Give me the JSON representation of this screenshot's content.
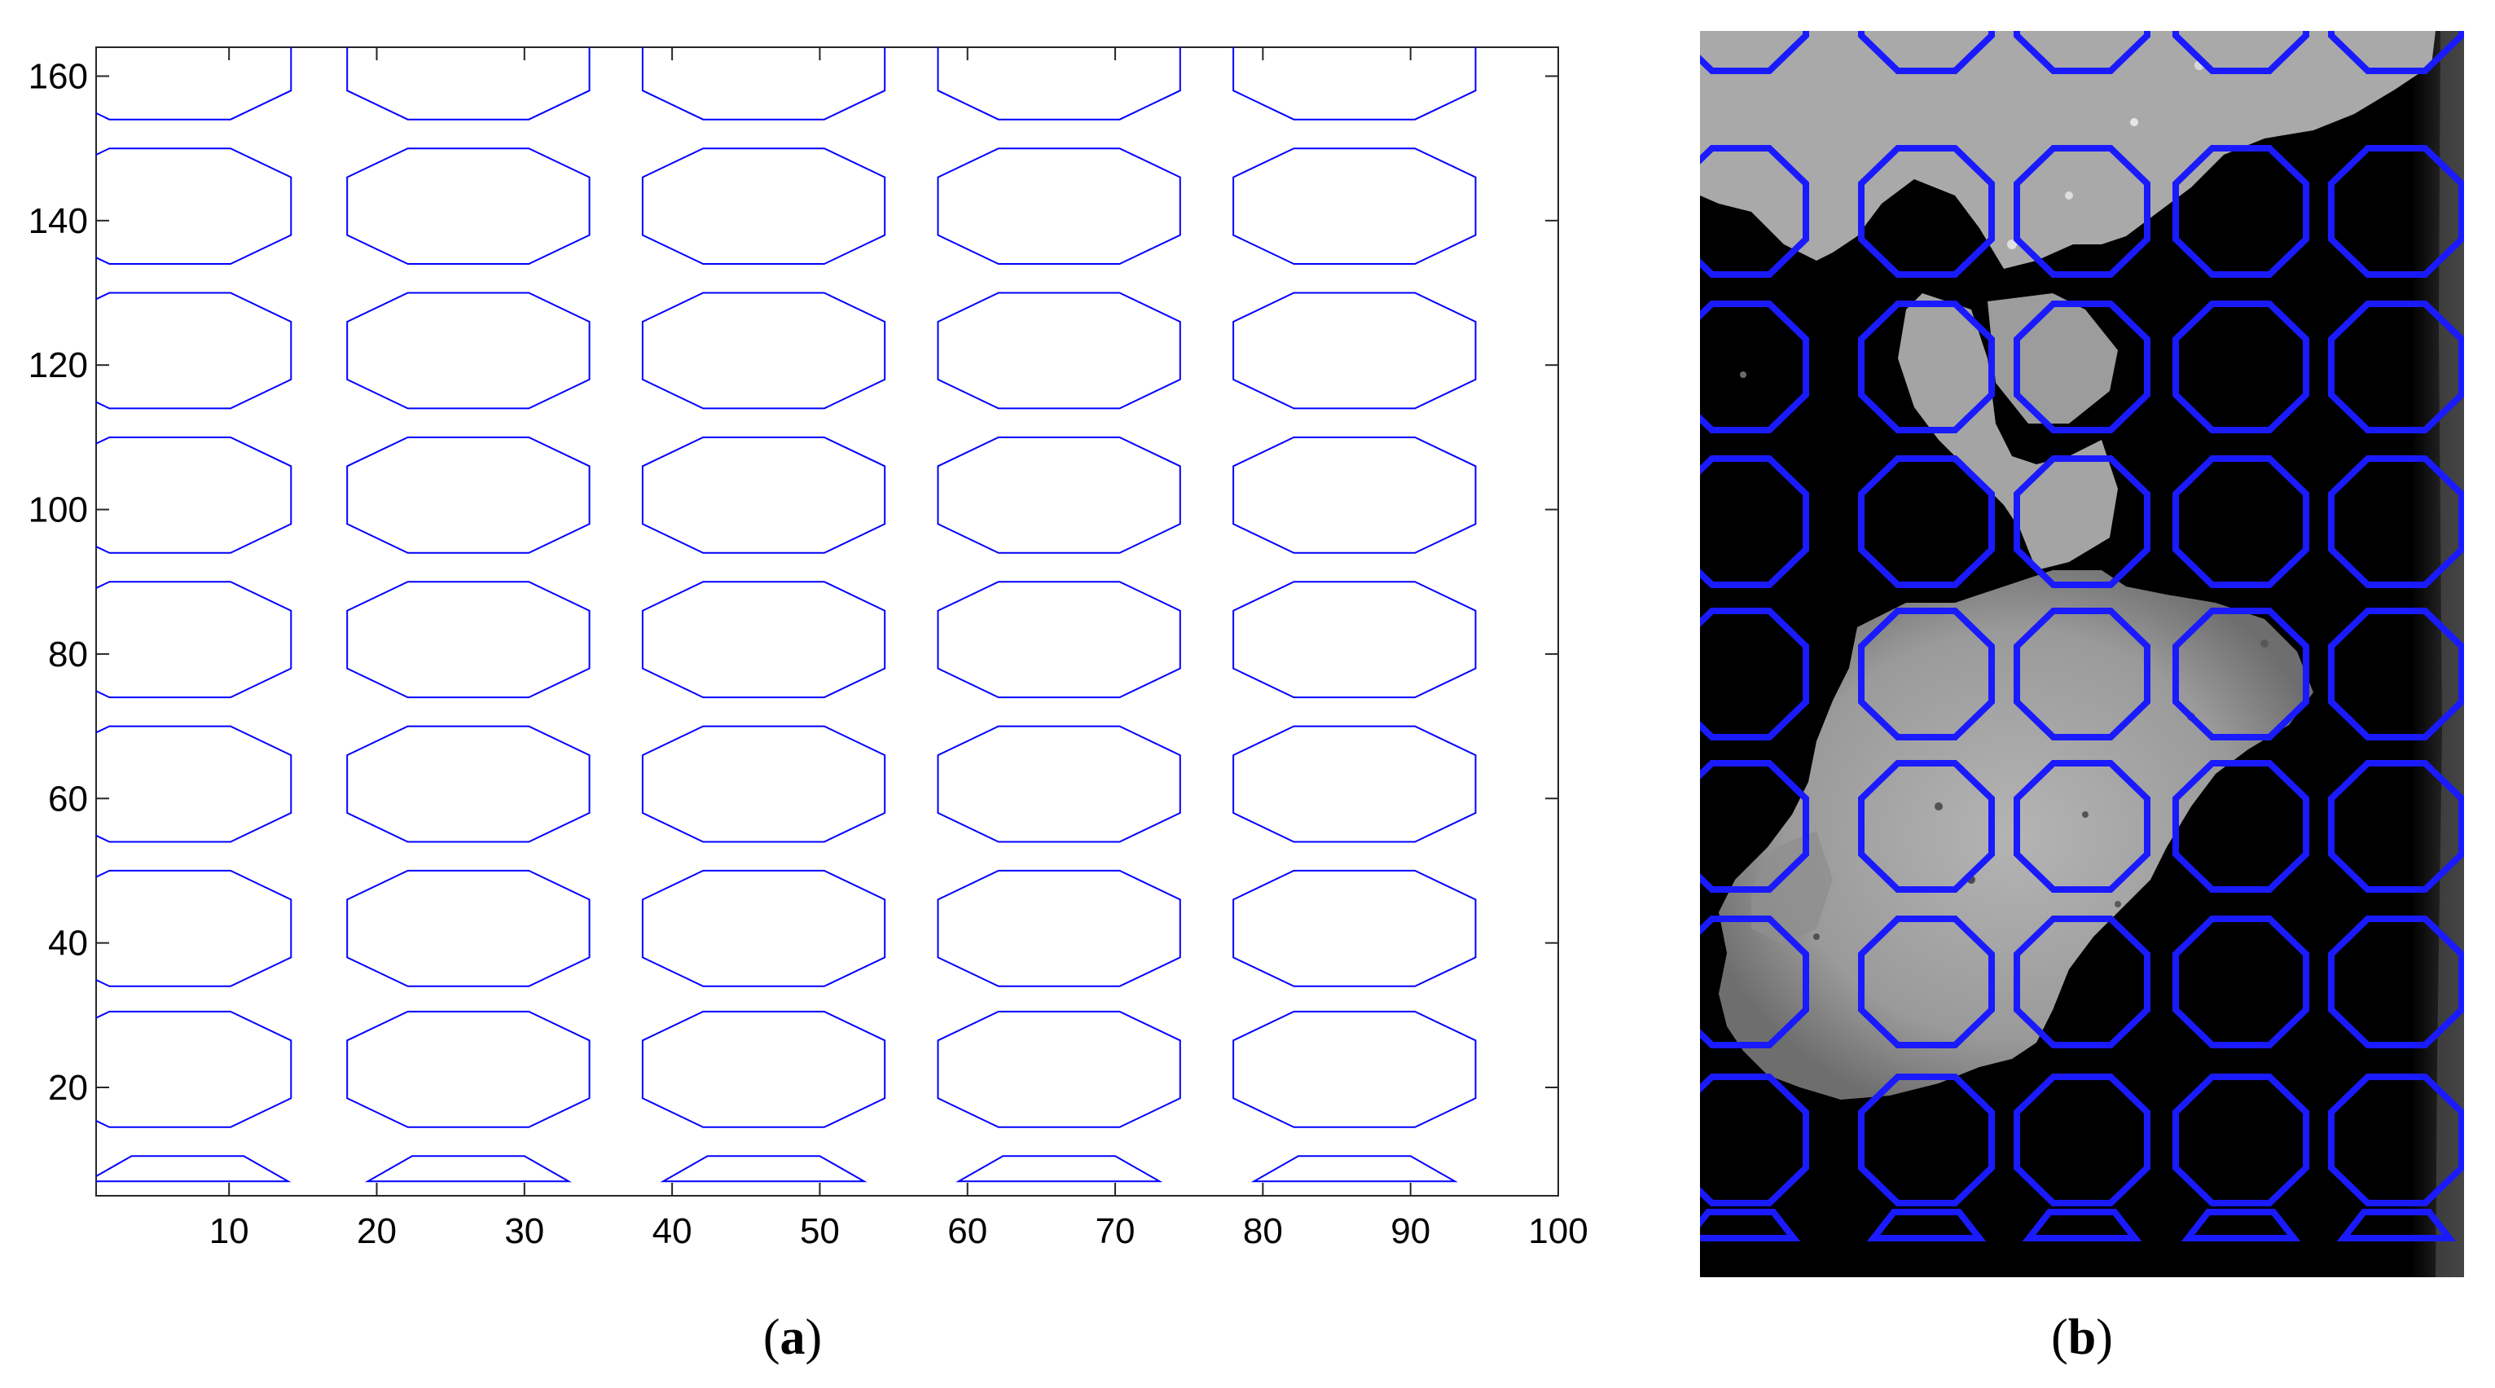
{
  "chart_data": [
    {
      "type": "line",
      "panel_label": {
        "open": "(",
        "letter": "a",
        "close": ")"
      },
      "xlim": [
        1,
        100
      ],
      "ylim": [
        5,
        164
      ],
      "x_ticks": [
        10,
        20,
        30,
        40,
        50,
        60,
        70,
        80,
        90,
        100
      ],
      "y_ticks": [
        20,
        40,
        60,
        80,
        100,
        120,
        140,
        160
      ],
      "grid": false,
      "line_color": "#0000ff",
      "cell": {
        "width": 16.4,
        "height": 16,
        "corner_fraction": 0.25
      },
      "column_x_starts": [
        -2.2,
        18.0,
        38.0,
        58.0,
        78.0
      ],
      "row_y_centers": [
        42,
        62,
        82,
        102,
        122,
        142
      ],
      "bottom_row": {
        "y_min": 7,
        "y_max": 10.5,
        "x_centers": [
          7.2,
          26.2,
          46.2,
          66.2,
          86.2
        ],
        "bottom_width": 13.6,
        "top_width": 7.6
      },
      "stacked_rows": [
        {
          "top_of_bottom_cell": 30.5,
          "bottom_of_top_cell": 34,
          "y_lower_extent": 14.5,
          "y_upper_extent": 50.5
        },
        {
          "top_of_bottom_cell": 150.5,
          "bottom_of_top_cell": 154,
          "y_upper_extent": 164
        }
      ]
    },
    {
      "type": "image",
      "panel_label": {
        "open": "(",
        "letter": "b",
        "close": ")"
      },
      "overlay_color": "#1a1aff",
      "grid": {
        "columns": 5,
        "rows": 8,
        "partial_top_row": true,
        "partial_bottom_row": true
      }
    }
  ]
}
